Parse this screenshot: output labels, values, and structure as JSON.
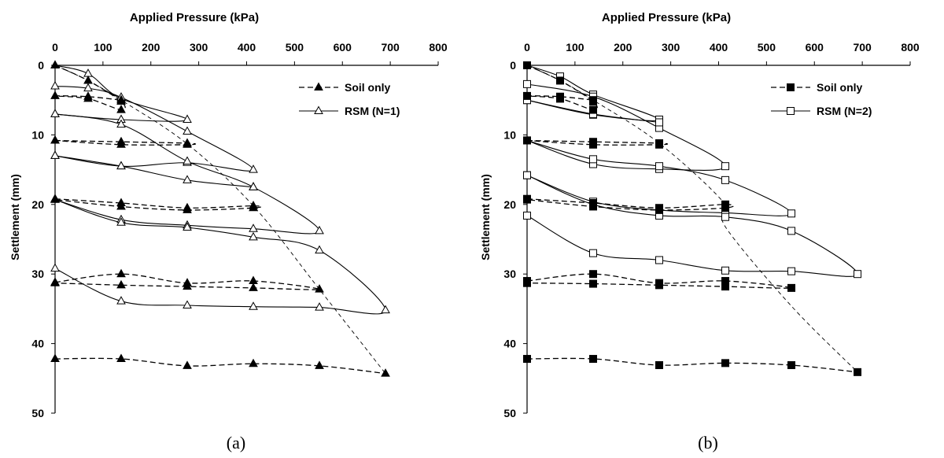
{
  "chart_data": [
    {
      "type": "line",
      "panel_label": "(a)",
      "xlabel": "Applied Pressure (kPa)",
      "ylabel": "Settlement (mm)",
      "xlim": [
        0,
        800
      ],
      "ylim": [
        0,
        50
      ],
      "y_inverted": true,
      "x_axis_position": "top",
      "xticks": [
        0,
        100,
        200,
        300,
        400,
        500,
        600,
        700,
        800
      ],
      "yticks": [
        0,
        10,
        20,
        30,
        40,
        50
      ],
      "grid": false,
      "legend_position": "top-right",
      "series": [
        {
          "name": "Soil only",
          "marker": "filled-triangle",
          "line_style": "dashed",
          "segments": [
            [
              [
                0,
                0
              ],
              [
                69,
                2.2
              ],
              [
                138,
                5.2
              ],
              [
                138,
                6.4
              ],
              [
                69,
                4.8
              ],
              [
                0,
                4.4
              ],
              [
                69,
                4.5
              ],
              [
                138,
                5.0
              ]
            ],
            [
              [
                0,
                10.8
              ],
              [
                138,
                11.0
              ],
              [
                276,
                11.2
              ],
              [
                276,
                11.4
              ],
              [
                138,
                11.4
              ],
              [
                0,
                10.8
              ]
            ],
            [
              [
                0,
                19.2
              ],
              [
                138,
                19.8
              ],
              [
                276,
                20.5
              ],
              [
                414,
                20.2
              ],
              [
                414,
                20.5
              ],
              [
                276,
                20.8
              ],
              [
                138,
                20.3
              ],
              [
                0,
                19.3
              ]
            ],
            [
              [
                0,
                31.2
              ],
              [
                138,
                30.0
              ],
              [
                276,
                31.3
              ],
              [
                414,
                31.0
              ],
              [
                552,
                32.2
              ],
              [
                414,
                32.0
              ],
              [
                276,
                31.8
              ],
              [
                138,
                31.6
              ],
              [
                0,
                31.3
              ]
            ],
            [
              [
                0,
                42.2
              ],
              [
                138,
                42.2
              ],
              [
                276,
                43.2
              ],
              [
                414,
                42.9
              ],
              [
                552,
                43.2
              ],
              [
                690,
                44.3
              ]
            ]
          ],
          "envelope": [
            [
              0,
              0
            ],
            [
              69,
              2.2
            ],
            [
              138,
              5.0
            ],
            [
              276,
              11.3
            ],
            [
              414,
              20.2
            ],
            [
              552,
              32.2
            ],
            [
              690,
              44.3
            ]
          ]
        },
        {
          "name": "RSM (N=1)",
          "marker": "open-triangle",
          "line_style": "solid",
          "segments": [
            [
              [
                0,
                0
              ],
              [
                69,
                1.2
              ],
              [
                138,
                4.8
              ],
              [
                276,
                7.8
              ],
              [
                138,
                7.8
              ],
              [
                0,
                7.0
              ]
            ],
            [
              [
                0,
                3.0
              ],
              [
                69,
                3.3
              ],
              [
                138,
                4.6
              ],
              [
                276,
                9.5
              ],
              [
                414,
                15.0
              ],
              [
                276,
                14.0
              ],
              [
                138,
                14.5
              ],
              [
                0,
                13.0
              ]
            ],
            [
              [
                0,
                7.0
              ],
              [
                138,
                8.5
              ],
              [
                276,
                13.8
              ],
              [
                414,
                17.5
              ],
              [
                552,
                23.8
              ],
              [
                414,
                23.5
              ],
              [
                276,
                23.0
              ],
              [
                138,
                22.2
              ],
              [
                0,
                19.3
              ]
            ],
            [
              [
                0,
                13.0
              ],
              [
                138,
                14.5
              ],
              [
                276,
                16.5
              ],
              [
                414,
                17.5
              ]
            ],
            [
              [
                0,
                19.3
              ],
              [
                138,
                22.6
              ],
              [
                276,
                23.3
              ],
              [
                414,
                24.7
              ],
              [
                552,
                26.6
              ],
              [
                690,
                35.2
              ],
              [
                552,
                34.8
              ],
              [
                414,
                34.7
              ],
              [
                276,
                34.5
              ],
              [
                138,
                33.9
              ],
              [
                0,
                29.2
              ]
            ]
          ]
        }
      ]
    },
    {
      "type": "line",
      "panel_label": "(b)",
      "xlabel": "Applied Pressure (kPa)",
      "ylabel": "Settlement (mm)",
      "xlim": [
        0,
        800
      ],
      "ylim": [
        0,
        50
      ],
      "y_inverted": true,
      "x_axis_position": "top",
      "xticks": [
        0,
        100,
        200,
        300,
        400,
        500,
        600,
        700,
        800
      ],
      "yticks": [
        0,
        10,
        20,
        30,
        40,
        50
      ],
      "grid": false,
      "legend_position": "top-right",
      "series": [
        {
          "name": "Soil only",
          "marker": "filled-square",
          "line_style": "dashed",
          "segments": [
            [
              [
                0,
                0
              ],
              [
                69,
                2.2
              ],
              [
                138,
                5.2
              ],
              [
                138,
                6.4
              ],
              [
                69,
                4.8
              ],
              [
                0,
                4.4
              ],
              [
                69,
                4.5
              ],
              [
                138,
                5.0
              ]
            ],
            [
              [
                0,
                10.8
              ],
              [
                138,
                11.0
              ],
              [
                276,
                11.2
              ],
              [
                276,
                11.4
              ],
              [
                138,
                11.4
              ],
              [
                0,
                10.8
              ]
            ],
            [
              [
                0,
                19.2
              ],
              [
                138,
                19.8
              ],
              [
                276,
                20.5
              ],
              [
                414,
                20.0
              ],
              [
                414,
                20.5
              ],
              [
                276,
                20.8
              ],
              [
                138,
                20.3
              ],
              [
                0,
                19.3
              ]
            ],
            [
              [
                0,
                31.0
              ],
              [
                138,
                30.0
              ],
              [
                276,
                31.3
              ],
              [
                414,
                31.0
              ],
              [
                552,
                32.0
              ],
              [
                414,
                31.8
              ],
              [
                276,
                31.6
              ],
              [
                138,
                31.4
              ],
              [
                0,
                31.3
              ]
            ],
            [
              [
                0,
                42.2
              ],
              [
                138,
                42.2
              ],
              [
                276,
                43.1
              ],
              [
                414,
                42.8
              ],
              [
                552,
                43.1
              ],
              [
                690,
                44.1
              ]
            ]
          ],
          "envelope": [
            [
              0,
              0
            ],
            [
              69,
              2.2
            ],
            [
              138,
              5.0
            ],
            [
              276,
              11.2
            ],
            [
              414,
              20.0
            ],
            [
              414,
              23.2
            ],
            [
              552,
              34.6
            ],
            [
              690,
              44.1
            ]
          ]
        },
        {
          "name": "RSM (N=2)",
          "marker": "open-square",
          "line_style": "solid",
          "segments": [
            [
              [
                0,
                0
              ],
              [
                69,
                1.6
              ],
              [
                138,
                4.2
              ],
              [
                276,
                7.8
              ],
              [
                138,
                7.1
              ],
              [
                0,
                5.0
              ]
            ],
            [
              [
                0,
                2.7
              ],
              [
                138,
                4.5
              ],
              [
                276,
                9.0
              ],
              [
                414,
                14.5
              ],
              [
                276,
                14.9
              ],
              [
                138,
                14.2
              ],
              [
                0,
                10.8
              ]
            ],
            [
              [
                0,
                5.0
              ],
              [
                138,
                7.0
              ],
              [
                276,
                8.2
              ]
            ],
            [
              [
                0,
                10.8
              ],
              [
                138,
                13.5
              ],
              [
                276,
                14.5
              ],
              [
                414,
                16.5
              ],
              [
                552,
                21.3
              ],
              [
                414,
                21.2
              ],
              [
                276,
                20.8
              ],
              [
                138,
                19.6
              ],
              [
                0,
                15.8
              ]
            ],
            [
              [
                0,
                15.8
              ],
              [
                138,
                20.0
              ],
              [
                276,
                21.6
              ],
              [
                414,
                21.8
              ],
              [
                552,
                23.8
              ],
              [
                690,
                30.0
              ],
              [
                552,
                29.6
              ],
              [
                414,
                29.5
              ],
              [
                276,
                28.0
              ],
              [
                138,
                27.0
              ],
              [
                0,
                21.6
              ]
            ]
          ]
        }
      ]
    }
  ],
  "colors": {
    "axis": "#000000",
    "series": "#000000",
    "background": "#ffffff"
  }
}
